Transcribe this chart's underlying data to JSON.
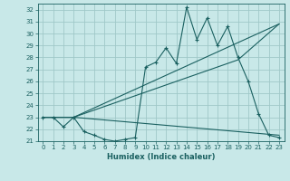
{
  "xlabel": "Humidex (Indice chaleur)",
  "ylabel": "",
  "bg_color": "#c8e8e8",
  "grid_color": "#a0c8c8",
  "line_color": "#1a6060",
  "xlim": [
    -0.5,
    23.5
  ],
  "ylim": [
    21.0,
    32.5
  ],
  "yticks": [
    21,
    22,
    23,
    24,
    25,
    26,
    27,
    28,
    29,
    30,
    31,
    32
  ],
  "xticks": [
    0,
    1,
    2,
    3,
    4,
    5,
    6,
    7,
    8,
    9,
    10,
    11,
    12,
    13,
    14,
    15,
    16,
    17,
    18,
    19,
    20,
    21,
    22,
    23
  ],
  "series": [
    {
      "x": [
        0,
        1,
        2,
        3,
        4,
        5,
        6,
        7,
        8,
        9,
        10,
        11,
        12,
        13,
        14,
        15,
        16,
        17,
        18,
        19,
        20,
        21,
        22,
        23
      ],
      "y": [
        23.0,
        23.0,
        22.2,
        23.0,
        21.8,
        21.5,
        21.15,
        21.0,
        21.15,
        21.3,
        27.2,
        27.6,
        28.8,
        27.5,
        32.2,
        29.5,
        31.3,
        29.0,
        30.6,
        28.0,
        26.0,
        23.3,
        21.5,
        21.3
      ],
      "marker": "+"
    },
    {
      "x": [
        0,
        3,
        23
      ],
      "y": [
        23.0,
        23.0,
        30.8
      ],
      "marker": null
    },
    {
      "x": [
        0,
        3,
        23
      ],
      "y": [
        23.0,
        23.0,
        21.5
      ],
      "marker": null
    },
    {
      "x": [
        0,
        3,
        19,
        23
      ],
      "y": [
        23.0,
        23.0,
        27.8,
        30.8
      ],
      "marker": null
    }
  ]
}
